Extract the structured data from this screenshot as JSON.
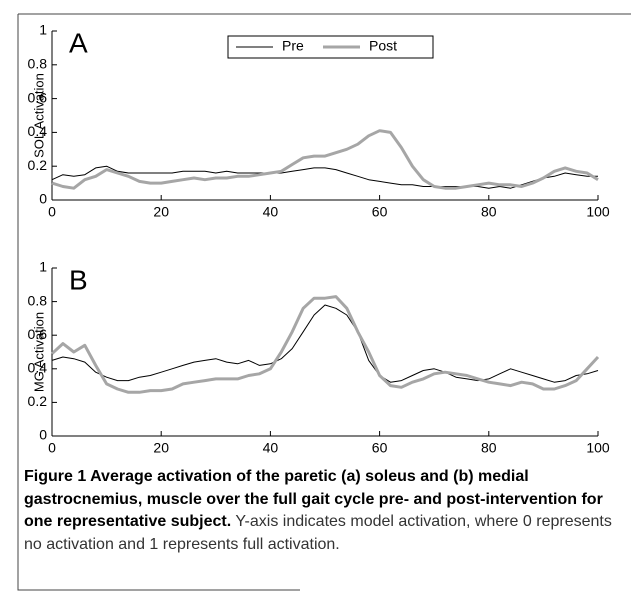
{
  "chart_data": [
    {
      "type": "line",
      "panel_label": "A",
      "ylabel": "SOL Activation",
      "x": [
        0,
        2,
        4,
        6,
        8,
        10,
        12,
        14,
        16,
        18,
        20,
        22,
        24,
        26,
        28,
        30,
        32,
        34,
        36,
        38,
        40,
        42,
        44,
        46,
        48,
        50,
        52,
        54,
        56,
        58,
        60,
        62,
        64,
        66,
        68,
        70,
        72,
        74,
        76,
        78,
        80,
        82,
        84,
        86,
        88,
        90,
        92,
        94,
        96,
        98,
        100
      ],
      "series": [
        {
          "name": "Pre",
          "color": "#000000",
          "values": [
            0.12,
            0.15,
            0.14,
            0.15,
            0.19,
            0.2,
            0.17,
            0.16,
            0.16,
            0.16,
            0.16,
            0.16,
            0.17,
            0.17,
            0.17,
            0.16,
            0.17,
            0.16,
            0.16,
            0.16,
            0.16,
            0.16,
            0.17,
            0.18,
            0.19,
            0.19,
            0.18,
            0.16,
            0.14,
            0.12,
            0.11,
            0.1,
            0.09,
            0.09,
            0.08,
            0.08,
            0.08,
            0.08,
            0.08,
            0.08,
            0.07,
            0.08,
            0.07,
            0.09,
            0.11,
            0.13,
            0.14,
            0.16,
            0.15,
            0.14,
            0.14
          ]
        },
        {
          "name": "Post",
          "color": "#a6a6a6",
          "values": [
            0.1,
            0.08,
            0.07,
            0.12,
            0.14,
            0.18,
            0.16,
            0.14,
            0.11,
            0.1,
            0.1,
            0.11,
            0.12,
            0.13,
            0.12,
            0.13,
            0.13,
            0.14,
            0.14,
            0.15,
            0.16,
            0.17,
            0.21,
            0.25,
            0.26,
            0.26,
            0.28,
            0.3,
            0.33,
            0.38,
            0.41,
            0.4,
            0.31,
            0.2,
            0.12,
            0.08,
            0.07,
            0.07,
            0.08,
            0.09,
            0.1,
            0.09,
            0.09,
            0.08,
            0.1,
            0.13,
            0.17,
            0.19,
            0.17,
            0.16,
            0.12
          ]
        }
      ],
      "xlim": [
        0,
        100
      ],
      "xticks": [
        0,
        20,
        40,
        60,
        80,
        100
      ],
      "ylim": [
        0,
        1
      ],
      "yticks": [
        0,
        0.2,
        0.4,
        0.6,
        0.8,
        1
      ],
      "legend": true
    },
    {
      "type": "line",
      "panel_label": "B",
      "ylabel": "MG Activation",
      "x": [
        0,
        2,
        4,
        6,
        8,
        10,
        12,
        14,
        16,
        18,
        20,
        22,
        24,
        26,
        28,
        30,
        32,
        34,
        36,
        38,
        40,
        42,
        44,
        46,
        48,
        50,
        52,
        54,
        56,
        58,
        60,
        62,
        64,
        66,
        68,
        70,
        72,
        74,
        76,
        78,
        80,
        82,
        84,
        86,
        88,
        90,
        92,
        94,
        96,
        98,
        100
      ],
      "series": [
        {
          "color": "#000000",
          "values": [
            0.45,
            0.47,
            0.46,
            0.44,
            0.38,
            0.35,
            0.33,
            0.33,
            0.35,
            0.36,
            0.38,
            0.4,
            0.42,
            0.44,
            0.45,
            0.46,
            0.44,
            0.43,
            0.45,
            0.42,
            0.43,
            0.46,
            0.52,
            0.62,
            0.72,
            0.78,
            0.76,
            0.72,
            0.62,
            0.45,
            0.36,
            0.32,
            0.33,
            0.36,
            0.39,
            0.4,
            0.38,
            0.35,
            0.34,
            0.33,
            0.34,
            0.37,
            0.4,
            0.38,
            0.36,
            0.34,
            0.32,
            0.33,
            0.36,
            0.37,
            0.39
          ]
        },
        {
          "color": "#a6a6a6",
          "values": [
            0.49,
            0.55,
            0.5,
            0.54,
            0.42,
            0.31,
            0.28,
            0.26,
            0.26,
            0.27,
            0.27,
            0.28,
            0.31,
            0.32,
            0.33,
            0.34,
            0.34,
            0.34,
            0.36,
            0.37,
            0.4,
            0.5,
            0.62,
            0.76,
            0.82,
            0.82,
            0.83,
            0.76,
            0.62,
            0.5,
            0.36,
            0.3,
            0.29,
            0.32,
            0.34,
            0.37,
            0.38,
            0.37,
            0.36,
            0.34,
            0.32,
            0.31,
            0.3,
            0.32,
            0.31,
            0.28,
            0.28,
            0.3,
            0.33,
            0.4,
            0.47
          ]
        }
      ],
      "xlim": [
        0,
        100
      ],
      "xticks": [
        0,
        20,
        40,
        60,
        80,
        100
      ],
      "ylim": [
        0,
        1
      ],
      "yticks": [
        0,
        0.2,
        0.4,
        0.6,
        0.8,
        1
      ],
      "legend": false
    }
  ],
  "caption": {
    "bold": "Figure 1 Average activation of the paretic (a) soleus and (b) medial gastrocnemius, muscle over the full gait cycle pre- and post-intervention for one representative subject.",
    "text": "Y-axis indicates model activation, where 0 represents no activation and 1 represents full activation."
  }
}
